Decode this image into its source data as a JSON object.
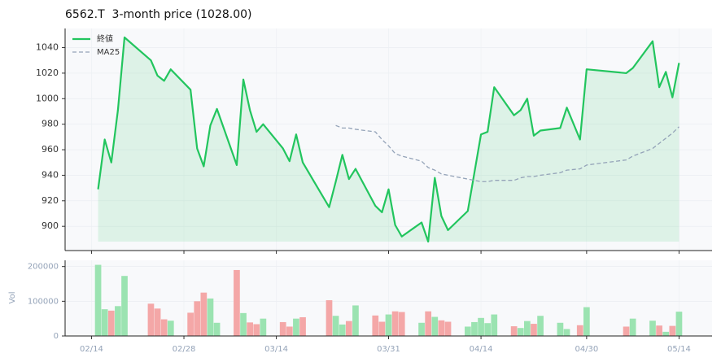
{
  "chart_data": [
    {
      "type": "line",
      "title": "6562.T  3-month price (1028.00)",
      "x": [
        "02/15",
        "02/16",
        "02/17",
        "02/18",
        "02/19",
        "02/23",
        "02/24",
        "02/25",
        "02/26",
        "03/01",
        "03/02",
        "03/03",
        "03/04",
        "03/05",
        "03/08",
        "03/09",
        "03/10",
        "03/11",
        "03/12",
        "03/15",
        "03/16",
        "03/17",
        "03/18",
        "03/22",
        "03/23",
        "03/24",
        "03/25",
        "03/26",
        "03/29",
        "03/30",
        "03/31",
        "04/01",
        "04/02",
        "04/05",
        "04/06",
        "04/07",
        "04/08",
        "04/09",
        "04/12",
        "04/13",
        "04/14",
        "04/15",
        "04/16",
        "04/19",
        "04/20",
        "04/21",
        "04/22",
        "04/23",
        "04/26",
        "04/27",
        "04/29",
        "04/30",
        "05/06",
        "05/07",
        "05/10",
        "05/11",
        "05/12",
        "05/13",
        "05/14"
      ],
      "xlim": [
        "02/10",
        "05/19"
      ],
      "series": [
        {
          "name": "終値",
          "color": "#22c55e",
          "area": true,
          "values": [
            929,
            968,
            950,
            991,
            1048,
            1030,
            1018,
            1014,
            1023,
            1007,
            961,
            947,
            979,
            992,
            948,
            1015,
            991,
            974,
            980,
            961,
            951,
            972,
            950,
            915,
            935,
            956,
            937,
            945,
            916,
            911,
            929,
            901,
            892,
            903,
            888,
            938,
            908,
            897,
            912,
            942,
            972,
            974,
            1009,
            987,
            991,
            1000,
            971,
            975,
            977,
            993,
            968,
            1023,
            1020,
            1024,
            1045,
            1009,
            1021,
            1001,
            1028
          ]
        },
        {
          "name": "MA25",
          "color": "#94a3b8",
          "dashed": true,
          "values": [
            null,
            null,
            null,
            null,
            null,
            null,
            null,
            null,
            null,
            null,
            null,
            null,
            null,
            null,
            null,
            null,
            null,
            null,
            null,
            null,
            null,
            null,
            null,
            null,
            979,
            977,
            977,
            976,
            974,
            968,
            963,
            957,
            955,
            951,
            946,
            944,
            941,
            940,
            937,
            936,
            935,
            935,
            936,
            936,
            938,
            939,
            939,
            940,
            942,
            944,
            945,
            948,
            952,
            955,
            961,
            965,
            969,
            973,
            978
          ]
        }
      ],
      "ylim": [
        881,
        1055
      ],
      "yticks": [
        900,
        920,
        940,
        960,
        980,
        1000,
        1020,
        1040
      ],
      "grid": true,
      "legend": "upper left"
    },
    {
      "type": "bar",
      "ylabel": "Vol",
      "x": [
        "02/15",
        "02/16",
        "02/17",
        "02/18",
        "02/19",
        "02/23",
        "02/24",
        "02/25",
        "02/26",
        "03/01",
        "03/02",
        "03/03",
        "03/04",
        "03/05",
        "03/08",
        "03/09",
        "03/10",
        "03/11",
        "03/12",
        "03/15",
        "03/16",
        "03/17",
        "03/18",
        "03/22",
        "03/23",
        "03/24",
        "03/25",
        "03/26",
        "03/29",
        "03/30",
        "03/31",
        "04/01",
        "04/02",
        "04/05",
        "04/06",
        "04/07",
        "04/08",
        "04/09",
        "04/12",
        "04/13",
        "04/14",
        "04/15",
        "04/16",
        "04/19",
        "04/20",
        "04/21",
        "04/22",
        "04/23",
        "04/26",
        "04/27",
        "04/29",
        "04/30",
        "05/06",
        "05/07",
        "05/10",
        "05/11",
        "05/12",
        "05/13",
        "05/14"
      ],
      "xlim": [
        "02/10",
        "05/19"
      ],
      "xticks": [
        "02/14",
        "02/28",
        "03/14",
        "03/31",
        "04/14",
        "04/30",
        "05/14"
      ],
      "values": [
        205000,
        77000,
        73000,
        86000,
        173000,
        93000,
        79000,
        48000,
        44000,
        67000,
        100000,
        125000,
        108000,
        38000,
        190000,
        66000,
        39000,
        34000,
        50000,
        40000,
        27000,
        50000,
        54000,
        103000,
        58000,
        33000,
        43000,
        88000,
        59000,
        41000,
        62000,
        71000,
        69000,
        38000,
        71000,
        55000,
        45000,
        41000,
        27000,
        40000,
        52000,
        37000,
        62000,
        28000,
        23000,
        43000,
        35000,
        58000,
        38000,
        20000,
        31000,
        83000,
        27000,
        50000,
        44000,
        30000,
        12000,
        29000,
        70000
      ],
      "up_color": "#9be3b1",
      "down_color": "#f4a7a7",
      "ylim": [
        0,
        218000
      ],
      "yticks": [
        0,
        100000,
        200000
      ],
      "grid": true
    }
  ]
}
